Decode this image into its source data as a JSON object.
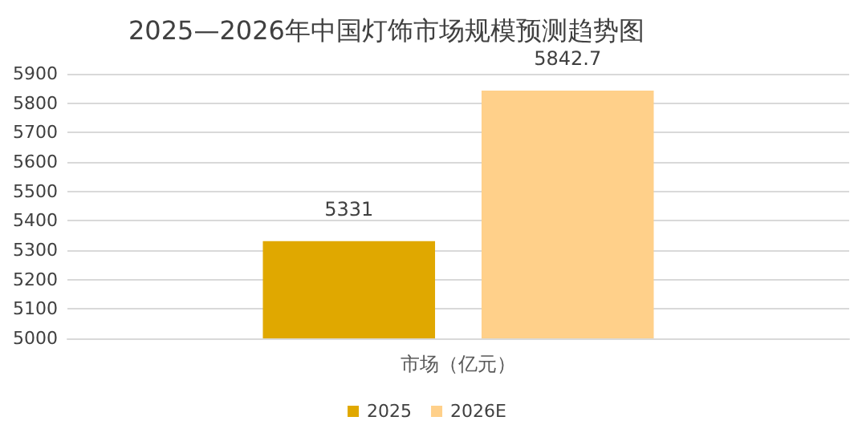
{
  "chart_data": {
    "type": "bar",
    "title": "2025—2026年中国灯饰市场规模预测趋势图",
    "categories": [
      "市场（亿元）"
    ],
    "series": [
      {
        "name": "2025",
        "color": "#e0a800",
        "values": [
          5331
        ]
      },
      {
        "name": "2026E",
        "color": "#ffd08a",
        "values": [
          5842.7
        ]
      }
    ],
    "ylim": [
      5000,
      5900
    ],
    "yticks": [
      5000,
      5100,
      5200,
      5300,
      5400,
      5500,
      5600,
      5700,
      5800,
      5900
    ],
    "grid": "y",
    "legend": "bottom",
    "data_labels": true
  }
}
